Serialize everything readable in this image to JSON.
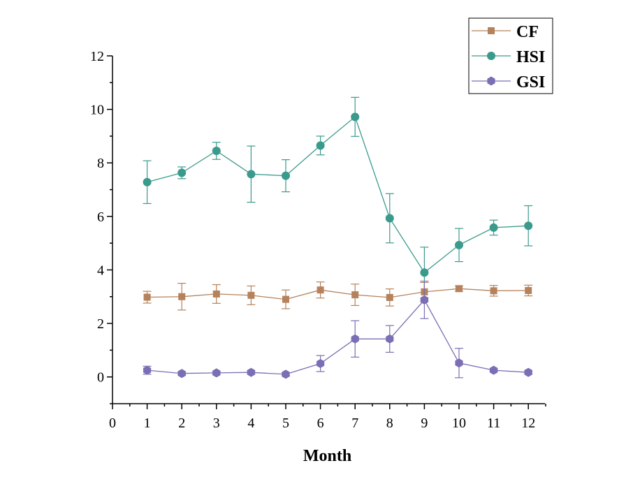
{
  "chart_data": {
    "type": "line",
    "xlabel": "Month",
    "ylabel": "",
    "xlim": [
      0,
      12.5
    ],
    "ylim": [
      -1,
      12
    ],
    "x_ticks": [
      "0",
      "1",
      "2",
      "3",
      "4",
      "5",
      "6",
      "7",
      "8",
      "9",
      "10",
      "11",
      "12"
    ],
    "y_ticks": [
      "0",
      "2",
      "4",
      "6",
      "8",
      "10",
      "12"
    ],
    "grid": false,
    "legend_position": "top-right",
    "x": [
      1,
      2,
      3,
      4,
      5,
      6,
      7,
      8,
      9,
      10,
      11,
      12
    ],
    "series": [
      {
        "name": "CF",
        "color": "#b5825b",
        "marker": "square",
        "values": [
          2.98,
          3.0,
          3.1,
          3.05,
          2.9,
          3.25,
          3.07,
          2.97,
          3.18,
          3.3,
          3.22,
          3.23
        ],
        "errors": [
          0.22,
          0.5,
          0.35,
          0.35,
          0.35,
          0.3,
          0.4,
          0.32,
          0.35,
          0.1,
          0.2,
          0.2
        ]
      },
      {
        "name": "HSI",
        "color": "#3a9a8c",
        "marker": "circle",
        "values": [
          7.28,
          7.63,
          8.45,
          7.58,
          7.52,
          8.65,
          9.72,
          5.93,
          3.9,
          4.93,
          5.58,
          5.65
        ],
        "errors": [
          0.8,
          0.22,
          0.32,
          1.05,
          0.6,
          0.35,
          0.73,
          0.92,
          0.95,
          0.62,
          0.28,
          0.75
        ]
      },
      {
        "name": "GSI",
        "color": "#7b6eb5",
        "marker": "hexagon",
        "values": [
          0.25,
          0.13,
          0.15,
          0.17,
          0.1,
          0.5,
          1.42,
          1.42,
          2.88,
          0.52,
          0.25,
          0.17
        ],
        "errors": [
          0.15,
          0.05,
          0.05,
          0.05,
          0.05,
          0.3,
          0.68,
          0.5,
          0.7,
          0.55,
          0.05,
          0.05
        ]
      }
    ]
  }
}
